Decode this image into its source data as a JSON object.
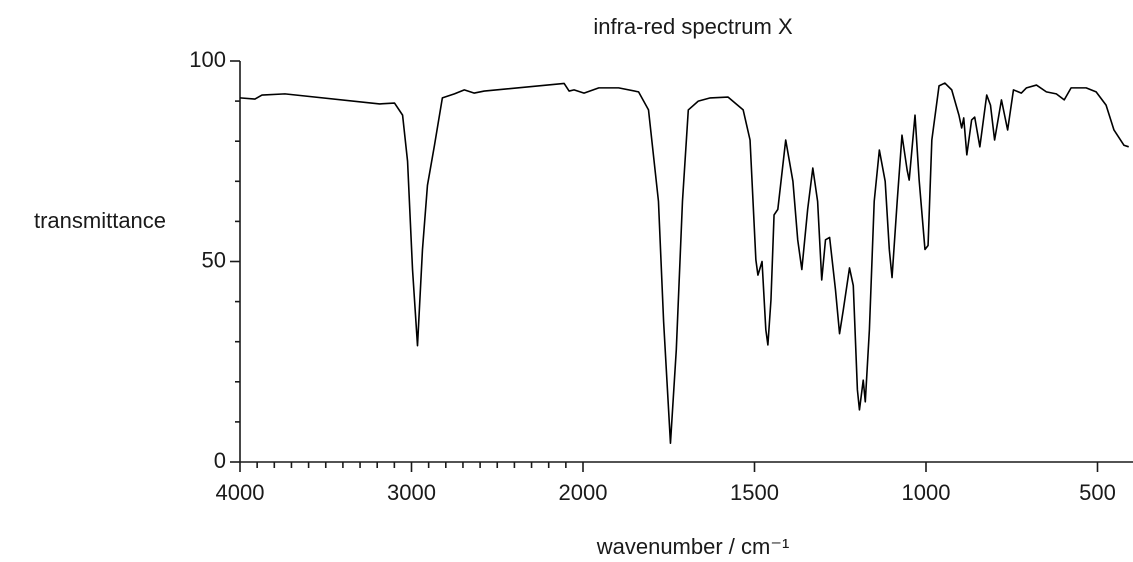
{
  "chart_data": {
    "type": "line",
    "title": "infra-red spectrum X",
    "x_label": "wavenumber / cm⁻¹",
    "y_label": "transmittance",
    "color": "#000000",
    "xlim": [
      4000,
      400
    ],
    "xticks": [
      4000,
      3000,
      2000,
      1500,
      1000,
      500
    ],
    "xminorticks": [
      3900,
      3800,
      3700,
      3600,
      3500,
      3400,
      3300,
      3200,
      3100,
      2900,
      2800,
      2700,
      2600,
      2500,
      2400,
      2300,
      2200,
      2100
    ],
    "ylim": [
      0,
      100
    ],
    "yticks": [
      0,
      50,
      100
    ],
    "yminorticks": [
      10,
      20,
      30,
      40,
      60,
      70,
      80,
      90
    ],
    "x": [
      4000,
      3913,
      3872,
      3738,
      3186,
      3099,
      3052,
      3023,
      2994,
      2965,
      2936,
      2907,
      2866,
      2820,
      2750,
      2692,
      2634,
      2576,
      2110,
      2081,
      2052,
      1997,
      1954,
      1896,
      1838,
      1809,
      1780,
      1765,
      1745,
      1728,
      1710,
      1693,
      1664,
      1629,
      1577,
      1533,
      1513,
      1496,
      1490,
      1478,
      1467,
      1461,
      1452,
      1443,
      1432,
      1409,
      1388,
      1374,
      1362,
      1345,
      1330,
      1316,
      1304,
      1293,
      1281,
      1264,
      1252,
      1241,
      1223,
      1212,
      1200,
      1194,
      1183,
      1177,
      1165,
      1151,
      1136,
      1119,
      1107,
      1099,
      1084,
      1070,
      1055,
      1049,
      1032,
      1020,
      1003,
      994,
      983,
      962,
      945,
      925,
      904,
      896,
      890,
      881,
      867,
      858,
      843,
      823,
      812,
      800,
      780,
      762,
      745,
      722,
      707,
      678,
      649,
      620,
      597,
      577,
      533,
      504,
      475,
      452,
      423,
      409
    ],
    "values": [
      90.8,
      90.5,
      91.5,
      91.8,
      89.3,
      89.5,
      86.5,
      75,
      48,
      29,
      53,
      69,
      79,
      90.8,
      91.8,
      92.8,
      92,
      92.5,
      94.4,
      92.5,
      92.8,
      92,
      93.3,
      93.3,
      92.3,
      87.8,
      65,
      35,
      4.7,
      28,
      65,
      87.8,
      90,
      90.8,
      91,
      87.8,
      80.3,
      50.4,
      46.6,
      50,
      33,
      29.2,
      40.4,
      61.6,
      63,
      80.3,
      70,
      55.4,
      48,
      63,
      73.3,
      65,
      45.4,
      55.4,
      56,
      43,
      32,
      38,
      48.4,
      44,
      18,
      13,
      20.4,
      15,
      33,
      65,
      77.8,
      70,
      53,
      46,
      65,
      81.5,
      72.8,
      70.3,
      86.5,
      70.3,
      53,
      54,
      80.3,
      93.8,
      94.5,
      92.8,
      86.5,
      83.3,
      85.8,
      76.6,
      85.3,
      86,
      78.6,
      91.5,
      89,
      80.3,
      90.3,
      82.8,
      92.8,
      92,
      93.3,
      94,
      92.3,
      91.8,
      90.3,
      93.3,
      93.3,
      92.3,
      89,
      82.8,
      79,
      78.6
    ]
  }
}
